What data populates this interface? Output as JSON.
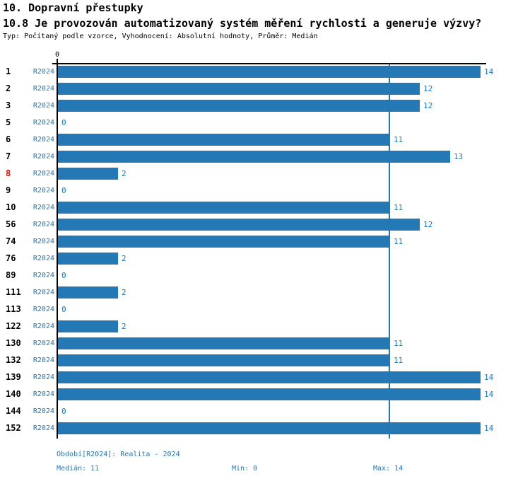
{
  "header": {
    "title1": "10. Dopravní přestupky",
    "title2": "10.8 Je provozován automatizovaný systém měření rychlosti a generuje výzvy?",
    "subtitle": "Typ: Počítaný podle vzorce, Vyhodnocení: Absolutní hodnoty, Průměr: Medián"
  },
  "chart_data": {
    "type": "bar",
    "orientation": "horizontal",
    "title": "10.8 Je provozován automatizovaný systém měření rychlosti a generuje výzvy?",
    "series_label": "R2024",
    "axis_zero_label": "0",
    "categories": [
      "1",
      "2",
      "3",
      "5",
      "6",
      "7",
      "8",
      "9",
      "10",
      "56",
      "74",
      "76",
      "89",
      "111",
      "113",
      "122",
      "130",
      "132",
      "139",
      "140",
      "144",
      "152"
    ],
    "values": [
      14,
      12,
      12,
      0,
      11,
      13,
      2,
      0,
      11,
      12,
      11,
      2,
      0,
      2,
      0,
      2,
      11,
      11,
      14,
      14,
      0,
      14
    ],
    "highlighted_category": "8",
    "median_reference_line": 11,
    "xlim": [
      0,
      14
    ],
    "grid": false,
    "legend_position": "none",
    "colors": {
      "bar": "#2478b4",
      "median_line": "#2478b4",
      "blue_text": "#1f77b4",
      "highlight_text": "#ff0000",
      "axis": "#000000"
    }
  },
  "footer": {
    "period": "Období[R2024]: Realita - 2024",
    "median": "Medián: 11",
    "min": "Min: 0",
    "max": "Max: 14"
  }
}
